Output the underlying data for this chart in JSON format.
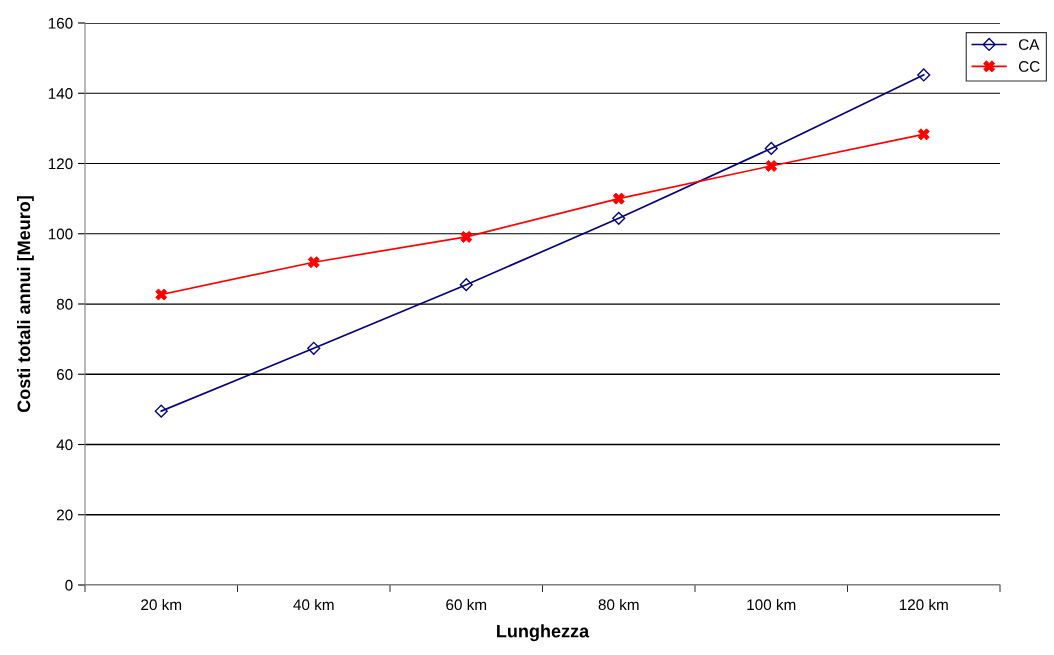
{
  "chart_data": {
    "type": "line",
    "xlabel": "Lunghezza",
    "ylabel": "Costi totali annui [Meuro]",
    "categories": [
      "20 km",
      "40 km",
      "60 km",
      "80 km",
      "100 km",
      "120 km"
    ],
    "series": [
      {
        "name": "CA",
        "color": "#000080",
        "marker": "diamond",
        "values": [
          49.5,
          67.4,
          85.5,
          104.4,
          124.3,
          145.2
        ]
      },
      {
        "name": "CC",
        "color": "#ff0000",
        "marker": "cross",
        "values": [
          82.7,
          91.9,
          99.1,
          110.0,
          119.3,
          128.3
        ]
      }
    ],
    "ylim": [
      0,
      160
    ],
    "yticks": [
      0,
      20,
      40,
      60,
      80,
      100,
      120,
      140,
      160
    ],
    "grid": "y",
    "legend": "top right",
    "line_style": "solid"
  }
}
